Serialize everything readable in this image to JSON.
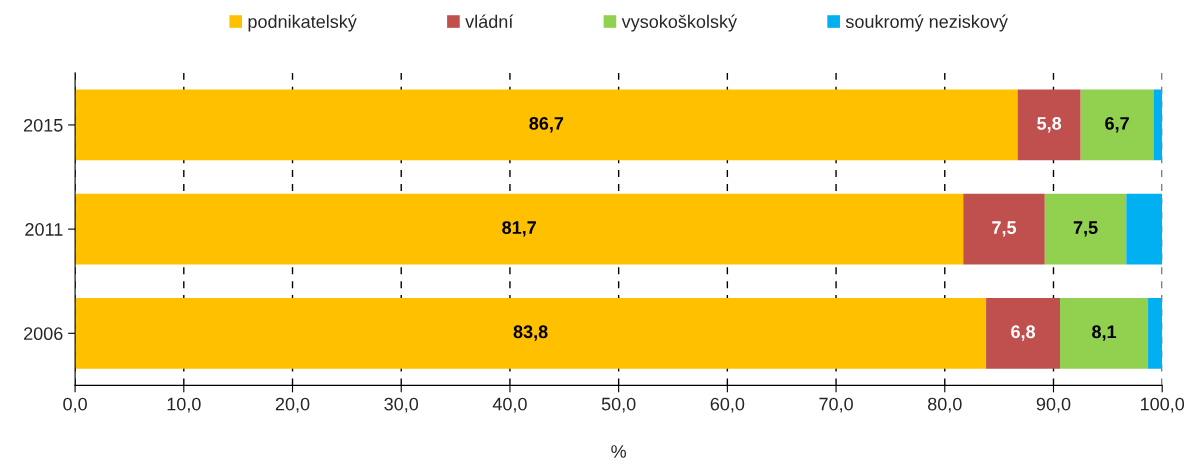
{
  "chart_data": {
    "type": "bar",
    "orientation": "horizontal",
    "stacked": true,
    "xlabel": "%",
    "categories": [
      "2015",
      "2011",
      "2006"
    ],
    "series": [
      {
        "name": "podnikatelský",
        "color": "#ffc000",
        "values": [
          86.7,
          81.7,
          83.8
        ],
        "value_labels": [
          "86,7",
          "81,7",
          "83,8"
        ]
      },
      {
        "name": "vládní",
        "color": "#c0504d",
        "values": [
          5.8,
          7.5,
          6.8
        ],
        "value_labels": [
          "5,8",
          "7,5",
          "6,8"
        ]
      },
      {
        "name": "vysokoškolský",
        "color": "#92d050",
        "values": [
          6.7,
          7.5,
          8.1
        ],
        "value_labels": [
          "6,7",
          "7,5",
          "8,1"
        ]
      },
      {
        "name": "soukromý neziskový",
        "color": "#00b0f0",
        "values": [
          0.8,
          3.3,
          1.3
        ]
      }
    ],
    "xlim": [
      0,
      100
    ],
    "xticks": [
      {
        "value": 0,
        "label": "0,0"
      },
      {
        "value": 10,
        "label": "10,0"
      },
      {
        "value": 20,
        "label": "20,0"
      },
      {
        "value": 30,
        "label": "30,0"
      },
      {
        "value": 40,
        "label": "40,0"
      },
      {
        "value": 50,
        "label": "50,0"
      },
      {
        "value": 60,
        "label": "60,0"
      },
      {
        "value": 70,
        "label": "70,0"
      },
      {
        "value": 80,
        "label": "80,0"
      },
      {
        "value": 90,
        "label": "90,0"
      },
      {
        "value": 100,
        "label": "100,0"
      }
    ],
    "grid": "x",
    "legend": "top"
  }
}
